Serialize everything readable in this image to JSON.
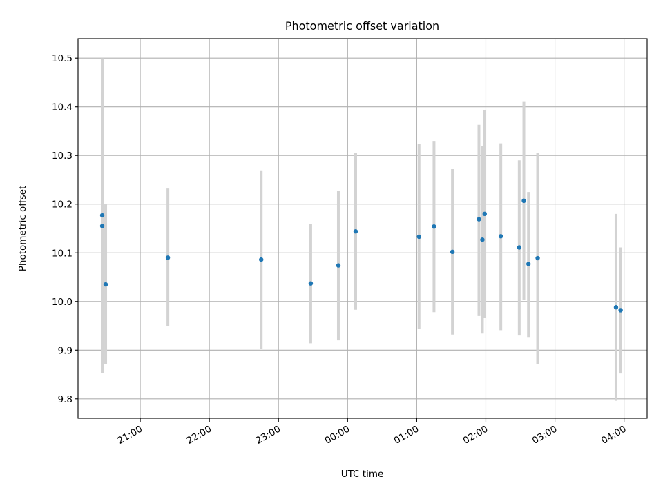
{
  "chart_data": {
    "type": "scatter",
    "title": "Photometric offset variation",
    "xlabel": "UTC time",
    "ylabel": "Photometric offset",
    "xlim": [
      "2023-01-01T20:06",
      "2023-01-02T04:20"
    ],
    "ylim": [
      9.76,
      10.54
    ],
    "x_ticks": [
      {
        "time": "2023-01-01T21:00",
        "label": "21:00"
      },
      {
        "time": "2023-01-01T22:00",
        "label": "22:00"
      },
      {
        "time": "2023-01-01T23:00",
        "label": "23:00"
      },
      {
        "time": "2023-01-02T00:00",
        "label": "00:00"
      },
      {
        "time": "2023-01-02T01:00",
        "label": "01:00"
      },
      {
        "time": "2023-01-02T02:00",
        "label": "02:00"
      },
      {
        "time": "2023-01-02T03:00",
        "label": "03:00"
      },
      {
        "time": "2023-01-02T04:00",
        "label": "04:00"
      }
    ],
    "y_ticks": [
      {
        "value": 9.8,
        "label": "9.8"
      },
      {
        "value": 9.9,
        "label": "9.9"
      },
      {
        "value": 10.0,
        "label": "10.0"
      },
      {
        "value": 10.1,
        "label": "10.1"
      },
      {
        "value": 10.2,
        "label": "10.2"
      },
      {
        "value": 10.3,
        "label": "10.3"
      },
      {
        "value": 10.4,
        "label": "10.4"
      },
      {
        "value": 10.5,
        "label": "10.5"
      }
    ],
    "grid": true,
    "marker_color": "#1f77b4",
    "errorbar_color": "#d3d3d3",
    "series": [
      {
        "x": [
          "2023-01-01T20:27",
          "2023-01-01T20:27",
          "2023-01-01T20:30",
          "2023-01-01T21:24",
          "2023-01-01T22:45",
          "2023-01-01T23:28",
          "2023-01-01T23:52",
          "2023-01-02T00:07",
          "2023-01-02T01:02",
          "2023-01-02T01:15",
          "2023-01-02T01:31",
          "2023-01-02T01:54",
          "2023-01-02T01:57",
          "2023-01-02T01:59",
          "2023-01-02T02:13",
          "2023-01-02T02:29",
          "2023-01-02T02:33",
          "2023-01-02T02:37",
          "2023-01-02T02:45",
          "2023-01-02T03:53",
          "2023-01-02T03:57"
        ],
        "y": [
          10.177,
          10.155,
          10.035,
          10.09,
          10.086,
          10.037,
          10.074,
          10.144,
          10.133,
          10.154,
          10.102,
          10.169,
          10.127,
          10.18,
          10.134,
          10.111,
          10.207,
          10.077,
          10.089,
          9.988,
          9.982
        ],
        "yerr_low": [
          9.853,
          9.87,
          9.872,
          9.95,
          9.903,
          9.914,
          9.92,
          9.983,
          9.943,
          9.978,
          9.932,
          9.97,
          9.934,
          9.966,
          9.941,
          9.93,
          10.003,
          9.927,
          9.871,
          9.796,
          9.852
        ],
        "yerr_high": [
          10.5,
          10.43,
          10.2,
          10.232,
          10.268,
          10.16,
          10.227,
          10.305,
          10.323,
          10.33,
          10.272,
          10.363,
          10.32,
          10.393,
          10.325,
          10.29,
          10.41,
          10.225,
          10.306,
          10.18,
          10.111
        ]
      }
    ]
  }
}
